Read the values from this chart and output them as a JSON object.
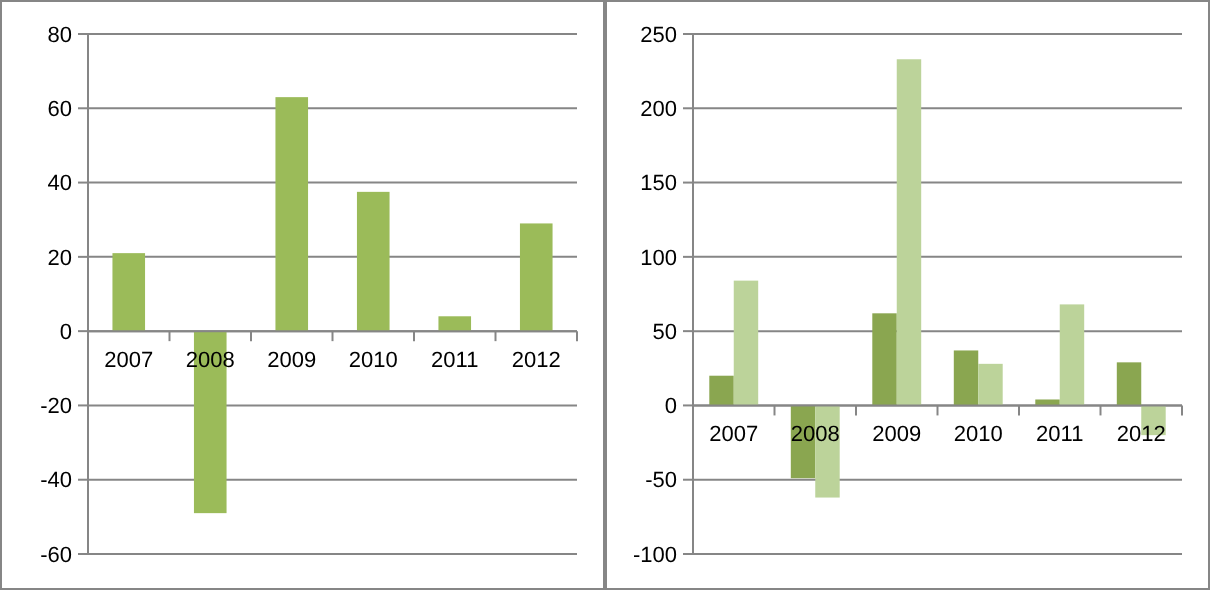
{
  "chart_data": [
    {
      "type": "bar",
      "categories": [
        "2007",
        "2008",
        "2009",
        "2010",
        "2011",
        "2012"
      ],
      "series": [
        {
          "color": "#9bbb59",
          "values": [
            21,
            -49,
            63,
            37.5,
            4,
            29
          ]
        }
      ],
      "ylim": [
        -60,
        80
      ],
      "yticks": [
        -60,
        -40,
        -20,
        0,
        20,
        40,
        60,
        80
      ],
      "grid": "y"
    },
    {
      "type": "bar",
      "categories": [
        "2007",
        "2008",
        "2009",
        "2010",
        "2011",
        "2012"
      ],
      "series": [
        {
          "color": "#8aa650",
          "values": [
            20,
            -49,
            62,
            37,
            4,
            29
          ]
        },
        {
          "color": "#bcd39a",
          "values": [
            84,
            -62,
            233,
            28,
            68,
            -20
          ]
        }
      ],
      "ylim": [
        -100,
        250
      ],
      "yticks": [
        -100,
        -50,
        0,
        50,
        100,
        150,
        200,
        250
      ],
      "grid": "y"
    }
  ]
}
